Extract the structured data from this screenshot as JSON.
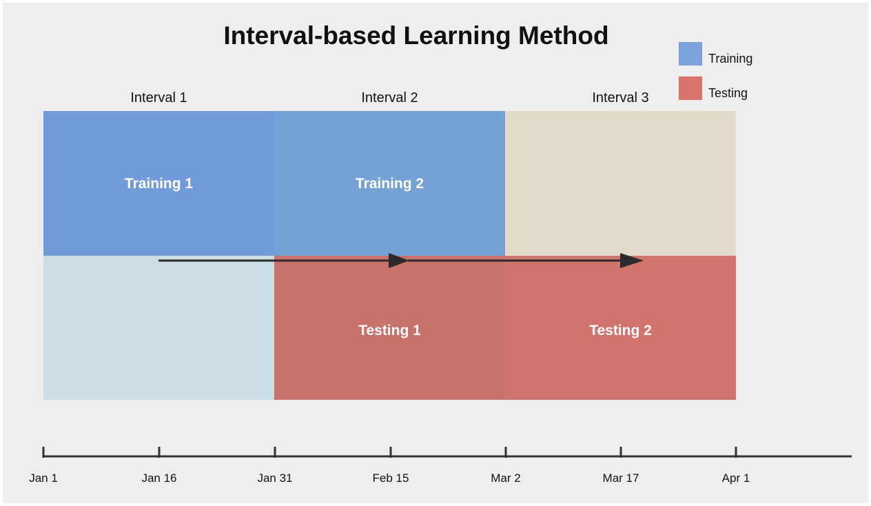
{
  "title": "Interval-based Learning Method",
  "legend": [
    {
      "label": "Training",
      "color": "#7ba2dd"
    },
    {
      "label": "Testing",
      "color": "#d8736c"
    }
  ],
  "intervals": [
    "Interval 1",
    "Interval 2",
    "Interval 3"
  ],
  "blocks": {
    "training": [
      {
        "label": "Training 1",
        "color": "#729bdc"
      },
      {
        "label": "Training 2",
        "color": "#75a1d4"
      },
      {
        "label": "",
        "color": "#e4dccb"
      }
    ],
    "testing": [
      {
        "label": "",
        "color": "#cbdee6"
      },
      {
        "label": "Testing 1",
        "color": "#c8726c"
      },
      {
        "label": "Testing 2",
        "color": "#d0746d"
      }
    ]
  },
  "axis": {
    "ticks": [
      "Jan 1",
      "Jan 16",
      "Jan 31",
      "Feb 15",
      "Mar 2",
      "Mar 17",
      "Apr 1"
    ]
  }
}
